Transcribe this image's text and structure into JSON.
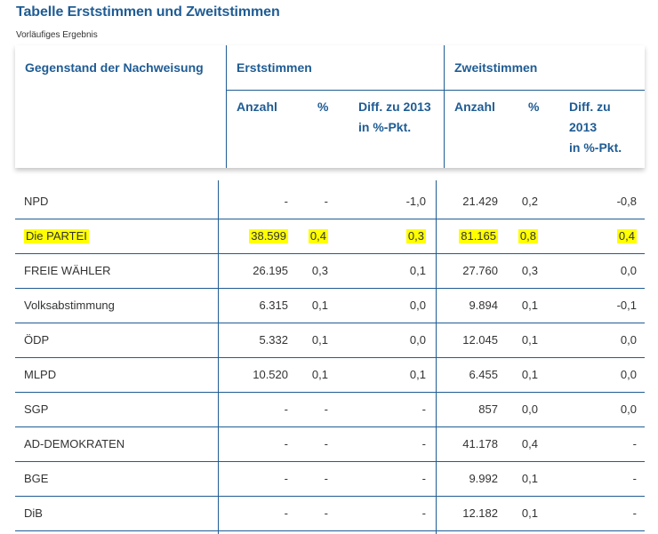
{
  "page": {
    "title": "Tabelle Erststimmen und Zweitstimmen",
    "subtitle": "Vorläufiges Ergebnis"
  },
  "header": {
    "subject": "Gegenstand der Nachweisung",
    "erst_group": "Erststimmen",
    "zweit_group": "Zweitstimmen",
    "anzahl": "Anzahl",
    "pct": "%",
    "diff_erst_l1": "Diff. zu 2013",
    "diff_erst_l2": "in %-Pkt.",
    "diff_zweit_l1": "Diff. zu",
    "diff_zweit_l2": "2013",
    "diff_zweit_l3": "in %-Pkt."
  },
  "colors": {
    "accent": "#1f5c94",
    "highlight": "#ffff00"
  },
  "rows": [
    {
      "name": "NPD",
      "e_anz": "-",
      "e_pct": "-",
      "e_diff": "-1,0",
      "z_anz": "21.429",
      "z_pct": "0,2",
      "z_diff": "-0,8",
      "highlighted": false
    },
    {
      "name": "Die PARTEI",
      "e_anz": "38.599",
      "e_pct": "0,4",
      "e_diff": "0,3",
      "z_anz": "81.165",
      "z_pct": "0,8",
      "z_diff": "0,4",
      "highlighted": true
    },
    {
      "name": "FREIE WÄHLER",
      "e_anz": "26.195",
      "e_pct": "0,3",
      "e_diff": "0,1",
      "z_anz": "27.760",
      "z_pct": "0,3",
      "z_diff": "0,0",
      "highlighted": false
    },
    {
      "name": "Volksabstimmung",
      "e_anz": "6.315",
      "e_pct": "0,1",
      "e_diff": "0,0",
      "z_anz": "9.894",
      "z_pct": "0,1",
      "z_diff": "-0,1",
      "highlighted": false
    },
    {
      "name": "ÖDP",
      "e_anz": "5.332",
      "e_pct": "0,1",
      "e_diff": "0,0",
      "z_anz": "12.045",
      "z_pct": "0,1",
      "z_diff": "0,0",
      "highlighted": false
    },
    {
      "name": "MLPD",
      "e_anz": "10.520",
      "e_pct": "0,1",
      "e_diff": "0,1",
      "z_anz": "6.455",
      "z_pct": "0,1",
      "z_diff": "0,0",
      "highlighted": false
    },
    {
      "name": "SGP",
      "e_anz": "-",
      "e_pct": "-",
      "e_diff": "-",
      "z_anz": "857",
      "z_pct": "0,0",
      "z_diff": "0,0",
      "highlighted": false
    },
    {
      "name": "AD-DEMOKRATEN",
      "e_anz": "-",
      "e_pct": "-",
      "e_diff": "-",
      "z_anz": "41.178",
      "z_pct": "0,4",
      "z_diff": "-",
      "highlighted": false
    },
    {
      "name": "BGE",
      "e_anz": "-",
      "e_pct": "-",
      "e_diff": "-",
      "z_anz": "9.992",
      "z_pct": "0,1",
      "z_diff": "-",
      "highlighted": false
    },
    {
      "name": "DiB",
      "e_anz": "-",
      "e_pct": "-",
      "e_diff": "-",
      "z_anz": "12.182",
      "z_pct": "0,1",
      "z_diff": "-",
      "highlighted": false
    }
  ]
}
